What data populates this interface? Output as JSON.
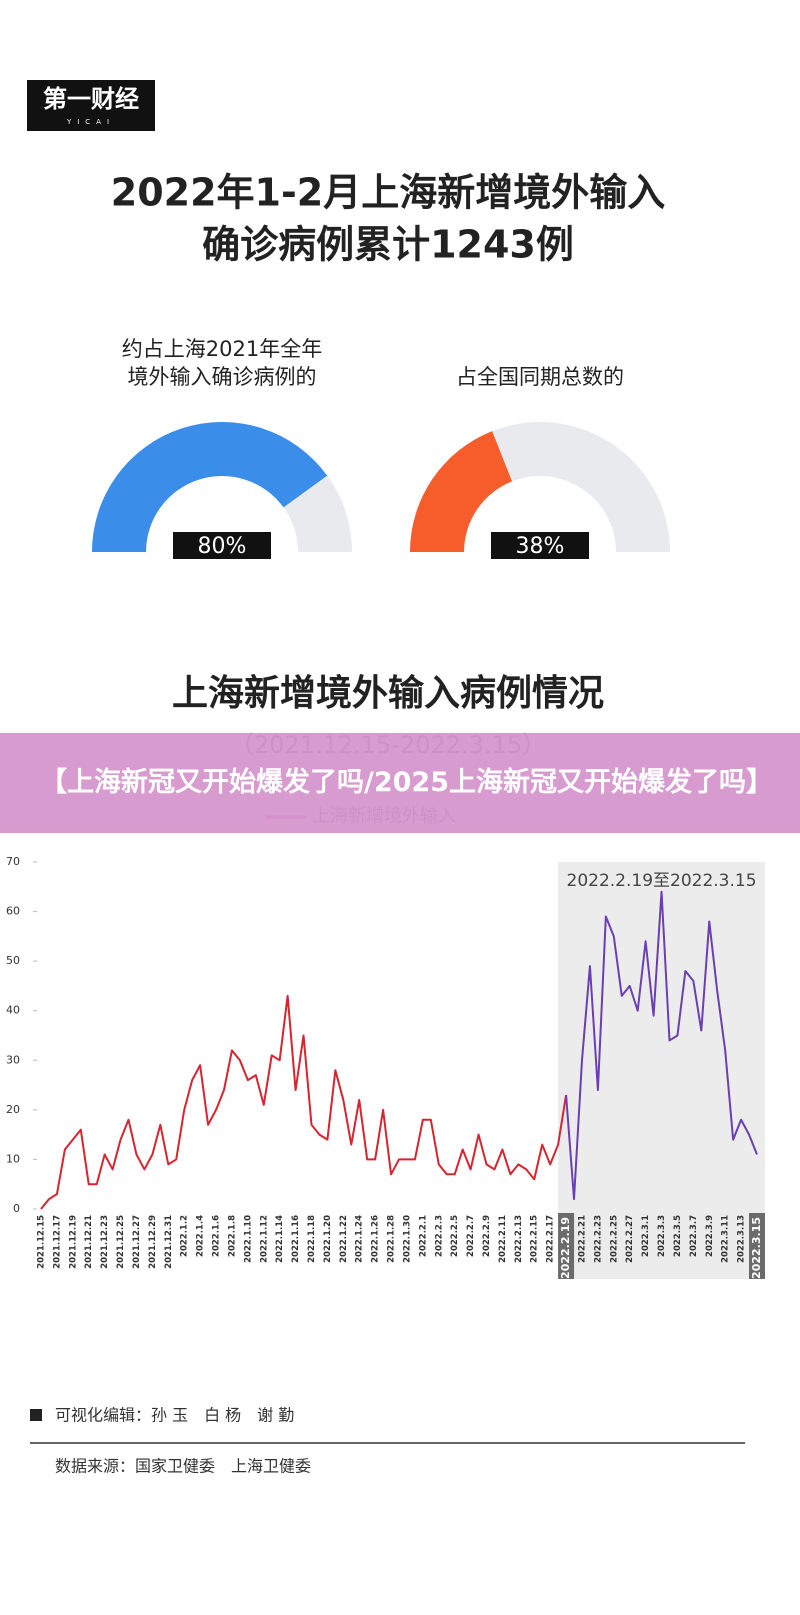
{
  "header": {
    "logo": "第一财经",
    "logo_sub": "YICAI",
    "title_lines": [
      "2022年1-2月上海新增境外输入",
      "确诊病例累计1243例"
    ]
  },
  "chart_data": [
    {
      "type": "gauge",
      "title_lines": [
        "约占上海2021年全年",
        "境外输入确诊病例的"
      ],
      "values": [
        80
      ],
      "value_labels": [
        "80%"
      ],
      "ylim": [
        0,
        100
      ],
      "color": "#3a8de9",
      "track_color": "#e8eaee"
    },
    {
      "type": "gauge",
      "title_lines": [
        "占全国同期总数的"
      ],
      "values": [
        38
      ],
      "value_labels": [
        "38%"
      ],
      "ylim": [
        0,
        100
      ],
      "color": "#f65d2b",
      "track_color": "#e8eaee"
    },
    {
      "type": "line",
      "title": "上海新增境外输入病例情况",
      "subtitle": "（2021.12.15-2022.3.15）",
      "annotation": "2022.2.19至2022.3.15",
      "categories": [
        "2021.12.15",
        null,
        "2021.12.17",
        null,
        "2021.12.19",
        null,
        "2021.12.21",
        null,
        "2021.12.23",
        null,
        "2021.12.25",
        null,
        "2021.12.27",
        null,
        "2021.12.29",
        null,
        "2021.12.31",
        null,
        "2022.1.2",
        null,
        "2022.1.4",
        null,
        "2022.1.6",
        null,
        "2022.1.8",
        null,
        "2022.1.10",
        null,
        "2022.1.12",
        null,
        "2022.1.14",
        null,
        "2022.1.16",
        null,
        "2022.1.18",
        null,
        "2022.1.20",
        null,
        "2022.1.22",
        null,
        "2022.1.24",
        null,
        "2022.1.26",
        null,
        "2022.1.28",
        null,
        "2022.1.30",
        null,
        "2022.2.1",
        null,
        "2022.2.3",
        null,
        "2022.2.5",
        null,
        "2022.2.7",
        null,
        "2022.2.9",
        null,
        "2022.2.11",
        null,
        "2022.2.13",
        null,
        "2022.2.15",
        null,
        "2022.2.17",
        null,
        "2022.2.19",
        null,
        "2022.2.21",
        null,
        "2022.2.23",
        null,
        "2022.2.25",
        null,
        "2022.2.27",
        null,
        "2022.3.1",
        null,
        "2022.3.3",
        null,
        "2022.3.5",
        null,
        "2022.3.7",
        null,
        "2022.3.9",
        null,
        "2022.3.11",
        null,
        "2022.3.13",
        null,
        "2022.3.15"
      ],
      "series": [
        {
          "name": "上海新增境外输入",
          "color": "#d8242f",
          "values": [
            0,
            2,
            3,
            12,
            14,
            16,
            5,
            5,
            11,
            8,
            14,
            18,
            11,
            8,
            11,
            17,
            9,
            10,
            20,
            26,
            29,
            17,
            20,
            24,
            32,
            30,
            26,
            27,
            21,
            31,
            30,
            43,
            24,
            35,
            17,
            15,
            14,
            28,
            22,
            13,
            22,
            10,
            10,
            20,
            7,
            10,
            10,
            10,
            18,
            18,
            9,
            7,
            7,
            12,
            8,
            15,
            9,
            8,
            12,
            7,
            9,
            8,
            6,
            13,
            9,
            13,
            23,
            null,
            null,
            null,
            null,
            null,
            null,
            null,
            null,
            null,
            null,
            null,
            null,
            null,
            null,
            null,
            null,
            null,
            null,
            null,
            null,
            null,
            null,
            null,
            null
          ]
        },
        {
          "color": "#6b3fb2",
          "values": [
            null,
            null,
            null,
            null,
            null,
            null,
            null,
            null,
            null,
            null,
            null,
            null,
            null,
            null,
            null,
            null,
            null,
            null,
            null,
            null,
            null,
            null,
            null,
            null,
            null,
            null,
            null,
            null,
            null,
            null,
            null,
            null,
            null,
            null,
            null,
            null,
            null,
            null,
            null,
            null,
            null,
            null,
            null,
            null,
            null,
            null,
            null,
            null,
            null,
            null,
            null,
            null,
            null,
            null,
            null,
            null,
            null,
            null,
            null,
            null,
            null,
            null,
            null,
            null,
            null,
            null,
            23,
            2,
            30,
            49,
            24,
            59,
            55,
            43,
            45,
            40,
            54,
            39,
            64,
            34,
            35,
            48,
            46,
            36,
            58,
            44,
            32,
            14,
            18,
            15,
            11
          ]
        }
      ],
      "ylim": [
        0,
        70
      ],
      "yticks": [
        0,
        10,
        20,
        30,
        40,
        50,
        60,
        70
      ],
      "legend_color": "#b3308f"
    }
  ],
  "banner": {
    "text": "【上海新冠又开始爆发了吗/2025上海新冠又开始爆发了吗】"
  },
  "footer": {
    "editors": "可视化编辑：孙 玉　白 杨　谢 勤",
    "source": "数据来源：国家卫健委　上海卫健委"
  }
}
